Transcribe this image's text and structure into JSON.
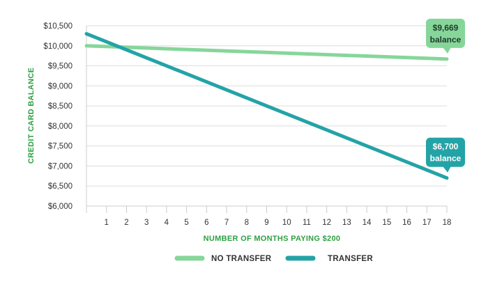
{
  "chart_data": {
    "type": "line",
    "xlabel": "NUMBER OF MONTHS PAYING $200",
    "ylabel": "CREDIT CARD BALANCE",
    "x": [
      0,
      18
    ],
    "x_ticks": [
      1,
      2,
      3,
      4,
      5,
      6,
      7,
      8,
      9,
      10,
      11,
      12,
      13,
      14,
      15,
      16,
      17,
      18
    ],
    "y_ticks": [
      "$6,000",
      "$6,500",
      "$7,000",
      "$7,500",
      "$8,000",
      "$8,500",
      "$9,000",
      "$9,500",
      "$10,000",
      "$10,500"
    ],
    "xlim": [
      0,
      18
    ],
    "ylim": [
      6000,
      10500
    ],
    "grid": "horizontal",
    "legend_position": "bottom",
    "series": [
      {
        "name": "NO TRANSFER",
        "color": "#86d69a",
        "values": [
          10000,
          9669
        ]
      },
      {
        "name": "TRANSFER",
        "color": "#24a3a6",
        "values": [
          10300,
          6700
        ]
      }
    ],
    "annotations": [
      {
        "series": "NO TRANSFER",
        "x": 18,
        "value": 9669,
        "line1": "$9,669",
        "line2": "balance",
        "color": "#86d69a",
        "text_color": "#1f3b2a"
      },
      {
        "series": "TRANSFER",
        "x": 18,
        "value": 6700,
        "line1": "$6,700",
        "line2": "balance",
        "color": "#24a3a6",
        "text_color": "#ffffff"
      }
    ],
    "colors": {
      "axis_title_y": "#2ea043",
      "axis_title_x": "#2ea043",
      "grid": "#dddddd"
    }
  }
}
